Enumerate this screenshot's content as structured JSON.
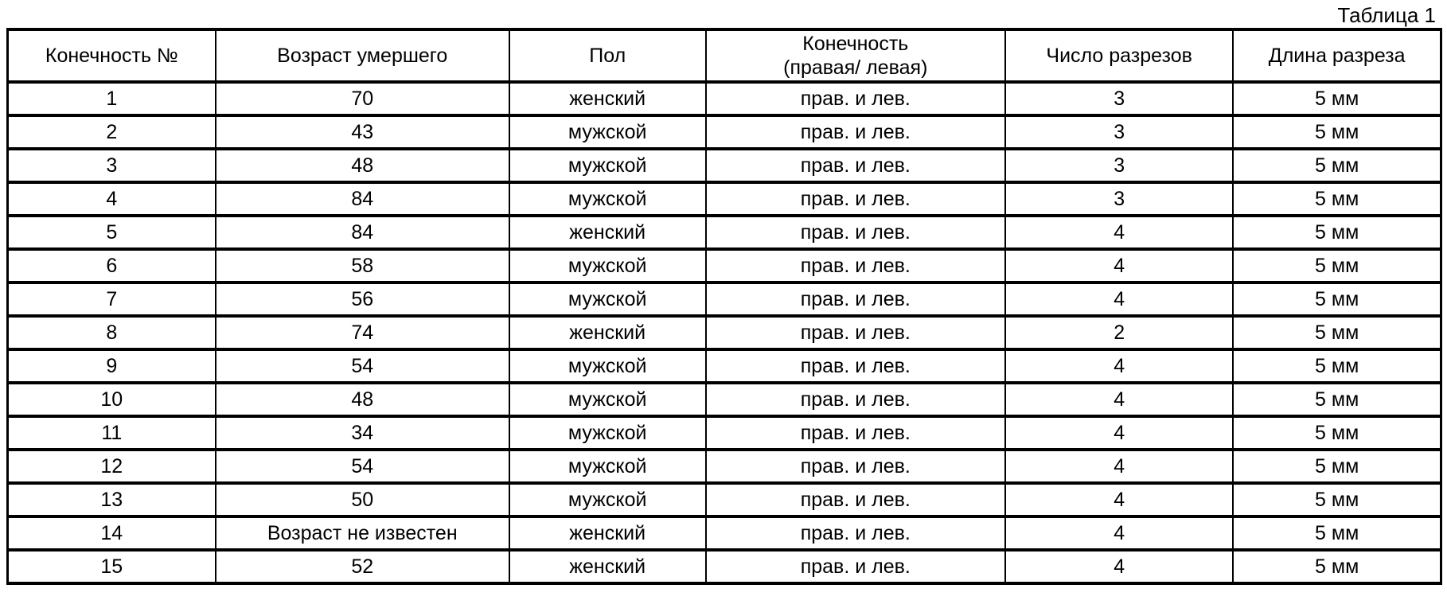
{
  "title": "Таблица 1",
  "table": {
    "headers": [
      "Конечность №",
      "Возраст умершего",
      "Пол",
      "Конечность\n(правая/ левая)",
      "Число разрезов",
      "Длина разреза"
    ],
    "rows": [
      [
        "1",
        "70",
        "женский",
        "прав. и лев.",
        "3",
        "5 мм"
      ],
      [
        "2",
        "43",
        "мужской",
        "прав. и лев.",
        "3",
        "5 мм"
      ],
      [
        "3",
        "48",
        "мужской",
        "прав. и лев.",
        "3",
        "5 мм"
      ],
      [
        "4",
        "84",
        "мужской",
        "прав. и лев.",
        "3",
        "5 мм"
      ],
      [
        "5",
        "84",
        "женский",
        "прав. и лев.",
        "4",
        "5 мм"
      ],
      [
        "6",
        "58",
        "мужской",
        "прав. и лев.",
        "4",
        "5 мм"
      ],
      [
        "7",
        "56",
        "мужской",
        "прав. и лев.",
        "4",
        "5 мм"
      ],
      [
        "8",
        "74",
        "женский",
        "прав. и лев.",
        "2",
        "5 мм"
      ],
      [
        "9",
        "54",
        "мужской",
        "прав. и лев.",
        "4",
        "5 мм"
      ],
      [
        "10",
        "48",
        "мужской",
        "прав. и лев.",
        "4",
        "5 мм"
      ],
      [
        "11",
        "34",
        "мужской",
        "прав. и лев.",
        "4",
        "5 мм"
      ],
      [
        "12",
        "54",
        "мужской",
        "прав. и лев.",
        "4",
        "5 мм"
      ],
      [
        "13",
        "50",
        "мужской",
        "прав. и лев.",
        "4",
        "5 мм"
      ],
      [
        "14",
        "Возраст не известен",
        "женский",
        "прав. и лев.",
        "4",
        "5 мм"
      ],
      [
        "15",
        "52",
        "женский",
        "прав. и лев.",
        "4",
        "5 мм"
      ]
    ]
  },
  "colors": {
    "background": "#ffffff",
    "text": "#000000",
    "border": "#000000"
  }
}
